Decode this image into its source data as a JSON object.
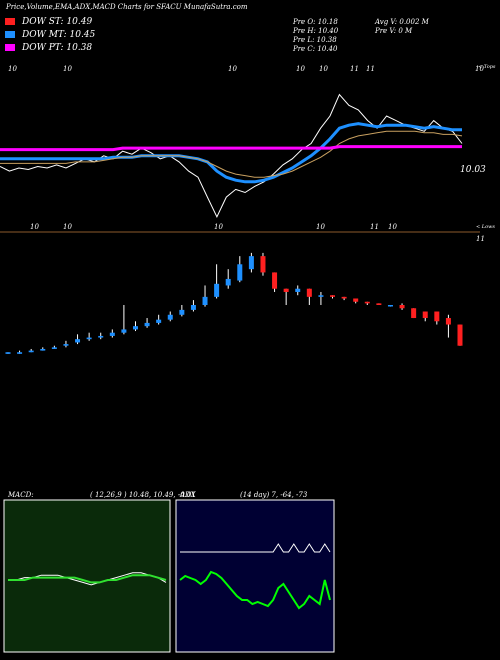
{
  "header": {
    "title": "Price,Volume,EMA,ADX,MACD Charts for SFACU MunafaSutra.com"
  },
  "legend": [
    {
      "label": "DOW ST: 10.49",
      "color": "#ff2020"
    },
    {
      "label": "DOW MT: 10.45",
      "color": "#1e90ff"
    },
    {
      "label": "DOW PT: 10.38",
      "color": "#ff00ff"
    }
  ],
  "ohlc": {
    "open": "Pre  O: 10.18",
    "high": "Pre  H: 10.40",
    "low": "Pre  L: 10.38",
    "close": "Pre  C: 10.40",
    "avg_volume": "Avg V: 0.002  M",
    "pre_volume": "Pre  V: 0  M"
  },
  "upper": {
    "top_label": "< Tops",
    "bottom_label": "< Lows",
    "price_label": "10.03",
    "top_marks": [
      "10",
      "10",
      "10",
      "10",
      "10",
      "11",
      "11",
      "10"
    ],
    "bottom_marks": [
      "10",
      "10",
      "10",
      "10",
      "11",
      "10",
      "11"
    ]
  },
  "macd_panel": {
    "label": "MACD:",
    "values": "( 12,26,9 ) 10.48, 10.49, -0.01"
  },
  "adx_panel": {
    "label": "ADX",
    "values": "(14  day) 7, -64, -73"
  },
  "colors": {
    "bg": "#000000",
    "price": "#ffffff",
    "ema_fast": "#ff2020",
    "ema_mid": "#1e90ff",
    "ema_slow": "#ff00ff",
    "up_candle": "#1e90ff",
    "down_candle": "#ff2020",
    "macd_bg": "#0a2a0a",
    "adx_bg": "#000033"
  },
  "chart_data": [
    {
      "type": "line",
      "title": "",
      "x": [
        1,
        2,
        3,
        4,
        5,
        6,
        7,
        8,
        9,
        10,
        11,
        12,
        13,
        14,
        15,
        16,
        17,
        18,
        19,
        20,
        21,
        22,
        23,
        24,
        25,
        26,
        27,
        28,
        29,
        30,
        31,
        32,
        33,
        34,
        35,
        36,
        37,
        38,
        39,
        40,
        41,
        42,
        43,
        44,
        45,
        46,
        47,
        48,
        49,
        50
      ],
      "series": [
        {
          "name": "",
          "values": [
            10.25,
            10.22,
            10.24,
            10.23,
            10.25,
            10.24,
            10.26,
            10.24,
            10.27,
            10.3,
            10.28,
            10.32,
            10.3,
            10.35,
            10.33,
            10.37,
            10.34,
            10.3,
            10.32,
            10.28,
            10.22,
            10.18,
            10.05,
            9.92,
            10.05,
            10.1,
            10.08,
            10.12,
            10.15,
            10.2,
            10.26,
            10.3,
            10.36,
            10.4,
            10.5,
            10.58,
            10.72,
            10.65,
            10.62,
            10.55,
            10.5,
            10.58,
            10.55,
            10.52,
            10.5,
            10.48,
            10.55,
            10.5,
            10.48,
            10.4
          ]
        },
        {
          "name": "",
          "values": [
            10.3,
            10.3,
            10.3,
            10.3,
            10.3,
            10.3,
            10.3,
            10.3,
            10.3,
            10.3,
            10.3,
            10.3,
            10.31,
            10.31,
            10.31,
            10.32,
            10.32,
            10.32,
            10.32,
            10.32,
            10.31,
            10.3,
            10.28,
            10.22,
            10.18,
            10.16,
            10.15,
            10.15,
            10.16,
            10.18,
            10.21,
            10.24,
            10.28,
            10.32,
            10.37,
            10.43,
            10.5,
            10.52,
            10.53,
            10.52,
            10.51,
            10.52,
            10.52,
            10.52,
            10.51,
            10.5,
            10.51,
            10.5,
            10.49,
            10.49
          ]
        },
        {
          "name": "",
          "values": [
            10.27,
            10.27,
            10.27,
            10.27,
            10.27,
            10.27,
            10.27,
            10.27,
            10.28,
            10.28,
            10.28,
            10.29,
            10.3,
            10.31,
            10.31,
            10.32,
            10.32,
            10.32,
            10.32,
            10.32,
            10.31,
            10.3,
            10.28,
            10.25,
            10.22,
            10.2,
            10.19,
            10.18,
            10.18,
            10.19,
            10.2,
            10.22,
            10.25,
            10.28,
            10.31,
            10.35,
            10.4,
            10.43,
            10.45,
            10.46,
            10.47,
            10.48,
            10.48,
            10.48,
            10.48,
            10.47,
            10.47,
            10.46,
            10.46,
            10.45
          ]
        },
        {
          "name": "",
          "values": [
            10.36,
            10.36,
            10.36,
            10.36,
            10.36,
            10.36,
            10.36,
            10.36,
            10.36,
            10.36,
            10.36,
            10.36,
            10.36,
            10.37,
            10.37,
            10.37,
            10.37,
            10.37,
            10.37,
            10.37,
            10.37,
            10.37,
            10.37,
            10.37,
            10.37,
            10.37,
            10.37,
            10.37,
            10.37,
            10.37,
            10.37,
            10.37,
            10.37,
            10.37,
            10.37,
            10.37,
            10.38,
            10.38,
            10.38,
            10.38,
            10.38,
            10.38,
            10.38,
            10.38,
            10.38,
            10.38,
            10.38,
            10.38,
            10.38,
            10.38
          ]
        }
      ]
    },
    {
      "type": "bar",
      "title": "",
      "x": [
        1,
        2,
        3,
        4,
        5,
        6,
        7,
        8,
        9,
        10,
        11,
        12,
        13,
        14,
        15,
        16,
        17,
        18,
        19,
        20,
        21,
        22,
        23,
        24,
        25,
        26,
        27,
        28,
        29,
        30,
        31,
        32,
        33,
        34,
        35,
        36,
        37,
        38,
        39,
        40
      ],
      "open": [
        10.0,
        10.0,
        10.01,
        10.02,
        10.03,
        10.05,
        10.07,
        10.09,
        10.1,
        10.11,
        10.13,
        10.15,
        10.17,
        10.19,
        10.21,
        10.24,
        10.27,
        10.3,
        10.35,
        10.42,
        10.45,
        10.52,
        10.6,
        10.5,
        10.4,
        10.38,
        10.4,
        10.35,
        10.36,
        10.35,
        10.34,
        10.32,
        10.31,
        10.3,
        10.3,
        10.28,
        10.26,
        10.26,
        10.22,
        10.18
      ],
      "close": [
        10.01,
        10.01,
        10.02,
        10.03,
        10.04,
        10.06,
        10.09,
        10.1,
        10.11,
        10.13,
        10.15,
        10.17,
        10.19,
        10.21,
        10.24,
        10.27,
        10.3,
        10.35,
        10.43,
        10.46,
        10.55,
        10.6,
        10.5,
        10.4,
        10.38,
        10.4,
        10.35,
        10.36,
        10.35,
        10.34,
        10.32,
        10.31,
        10.3,
        10.3,
        10.28,
        10.22,
        10.22,
        10.2,
        10.18,
        10.05
      ],
      "high": [
        10.01,
        10.02,
        10.03,
        10.04,
        10.05,
        10.08,
        10.12,
        10.13,
        10.13,
        10.15,
        10.3,
        10.2,
        10.22,
        10.24,
        10.26,
        10.3,
        10.33,
        10.42,
        10.55,
        10.52,
        10.6,
        10.62,
        10.62,
        10.5,
        10.4,
        10.42,
        10.4,
        10.38,
        10.36,
        10.35,
        10.34,
        10.32,
        10.31,
        10.3,
        10.31,
        10.28,
        10.26,
        10.26,
        10.24,
        10.18
      ],
      "low": [
        10.0,
        10.0,
        10.01,
        10.02,
        10.03,
        10.04,
        10.06,
        10.08,
        10.09,
        10.1,
        10.12,
        10.14,
        10.16,
        10.18,
        10.2,
        10.23,
        10.26,
        10.29,
        10.34,
        10.4,
        10.44,
        10.5,
        10.48,
        10.38,
        10.3,
        10.36,
        10.3,
        10.3,
        10.34,
        10.33,
        10.31,
        10.3,
        10.3,
        10.29,
        10.27,
        10.22,
        10.2,
        10.18,
        10.1,
        10.05
      ]
    },
    {
      "type": "line",
      "title": "MACD",
      "x": [
        1,
        2,
        3,
        4,
        5,
        6,
        7,
        8,
        9,
        10,
        11,
        12,
        13,
        14,
        15,
        16,
        17,
        18,
        19,
        20
      ],
      "series": [
        {
          "name": "",
          "values": [
            0.0,
            0.0,
            0.01,
            0.01,
            0.02,
            0.02,
            0.02,
            0.01,
            0.0,
            -0.01,
            -0.02,
            -0.01,
            0.0,
            0.01,
            0.02,
            0.03,
            0.03,
            0.02,
            0.01,
            -0.01
          ]
        },
        {
          "name": "",
          "values": [
            0.0,
            0.0,
            0.0,
            0.01,
            0.01,
            0.01,
            0.01,
            0.01,
            0.01,
            0.0,
            -0.01,
            -0.01,
            0.0,
            0.0,
            0.01,
            0.02,
            0.02,
            0.02,
            0.01,
            0.0
          ]
        }
      ]
    },
    {
      "type": "line",
      "title": "ADX",
      "x": [
        1,
        2,
        3,
        4,
        5,
        6,
        7,
        8,
        9,
        10,
        11,
        12,
        13,
        14,
        15,
        16,
        17,
        18,
        19,
        20,
        21,
        22,
        23,
        24,
        25,
        26,
        27,
        28,
        29,
        30
      ],
      "series": [
        {
          "name": "",
          "values": [
            30,
            32,
            31,
            30,
            28,
            30,
            34,
            33,
            31,
            28,
            25,
            22,
            20,
            20,
            18,
            19,
            18,
            17,
            20,
            26,
            28,
            24,
            20,
            16,
            18,
            22,
            20,
            18,
            30,
            20
          ]
        },
        {
          "name": "",
          "values": [
            10,
            10,
            10,
            10,
            10,
            10,
            10,
            10,
            10,
            10,
            10,
            10,
            10,
            10,
            10,
            10,
            10,
            10,
            10,
            14,
            10,
            10,
            14,
            10,
            10,
            14,
            10,
            10,
            14,
            10
          ]
        }
      ]
    }
  ]
}
